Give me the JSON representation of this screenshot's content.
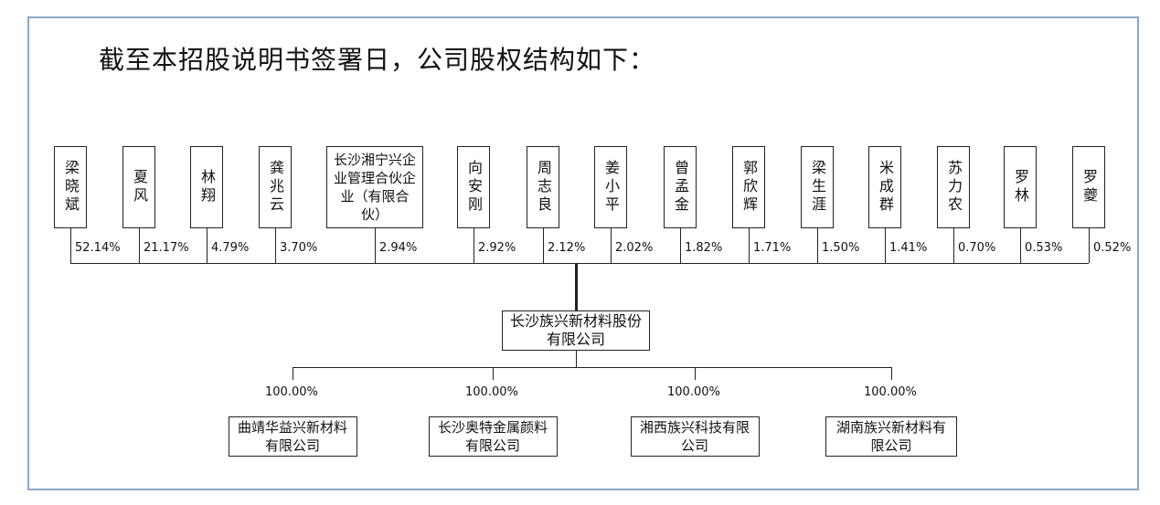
{
  "heading": "截至本招股说明书签署日，公司股权结构如下：",
  "shareholders": [
    {
      "name": "梁晓斌",
      "pct": "52.14%"
    },
    {
      "name": "夏风",
      "pct": "21.17%"
    },
    {
      "name": "林翔",
      "pct": "4.79%"
    },
    {
      "name": "龚兆云",
      "pct": "3.70%"
    },
    {
      "name": "长沙湘宁兴企业管理合伙企业（有限合伙）",
      "pct": "2.94%"
    },
    {
      "name": "向安刚",
      "pct": "2.92%"
    },
    {
      "name": "周志良",
      "pct": "2.12%"
    },
    {
      "name": "姜小平",
      "pct": "2.02%"
    },
    {
      "name": "曾孟金",
      "pct": "1.82%"
    },
    {
      "name": "郭欣辉",
      "pct": "1.71%"
    },
    {
      "name": "梁生涯",
      "pct": "1.50%"
    },
    {
      "name": "米成群",
      "pct": "1.41%"
    },
    {
      "name": "苏力农",
      "pct": "0.70%"
    },
    {
      "name": "罗林",
      "pct": "0.53%"
    },
    {
      "name": "罗夔",
      "pct": "0.52%"
    }
  ],
  "company": "长沙族兴新材料股份有限公司",
  "subsidiaries": [
    {
      "name": "曲靖华益兴新材料有限公司",
      "pct": "100.00%"
    },
    {
      "name": "长沙奥特金属颜料有限公司",
      "pct": "100.00%"
    },
    {
      "name": "湘西族兴科技有限公司",
      "pct": "100.00%"
    },
    {
      "name": "湖南族兴新材料有限公司",
      "pct": "100.00%"
    }
  ]
}
